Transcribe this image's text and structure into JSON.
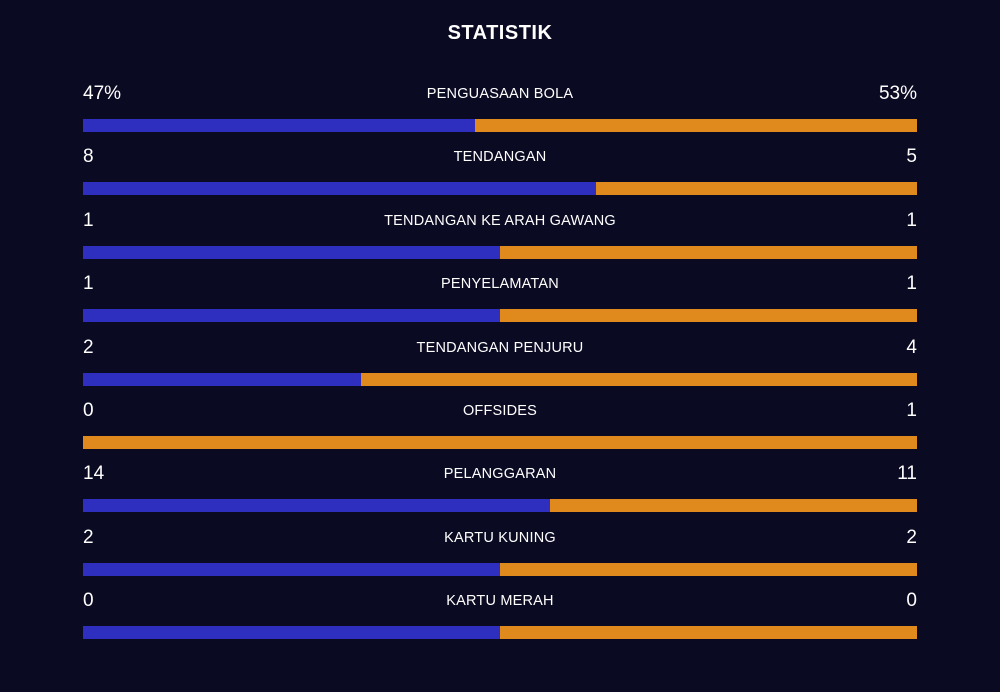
{
  "title": "STATISTIK",
  "colors": {
    "background": "#0a0a23",
    "home": "#2f2fbf",
    "away": "#e08a1e"
  },
  "stats": [
    {
      "label": "PENGUASAAN BOLA",
      "home": "47%",
      "away": "53%",
      "home_share": 0.47
    },
    {
      "label": "TENDANGAN",
      "home": "8",
      "away": "5",
      "home_share": 0.615
    },
    {
      "label": "TENDANGAN KE ARAH GAWANG",
      "home": "1",
      "away": "1",
      "home_share": 0.5
    },
    {
      "label": "PENYELAMATAN",
      "home": "1",
      "away": "1",
      "home_share": 0.5
    },
    {
      "label": "TENDANGAN PENJURU",
      "home": "2",
      "away": "4",
      "home_share": 0.333
    },
    {
      "label": "OFFSIDES",
      "home": "0",
      "away": "1",
      "home_share": 0
    },
    {
      "label": "PELANGGARAN",
      "home": "14",
      "away": "11",
      "home_share": 0.56
    },
    {
      "label": "KARTU KUNING",
      "home": "2",
      "away": "2",
      "home_share": 0.5
    },
    {
      "label": "KARTU MERAH",
      "home": "0",
      "away": "0",
      "home_share": 0.5
    }
  ]
}
